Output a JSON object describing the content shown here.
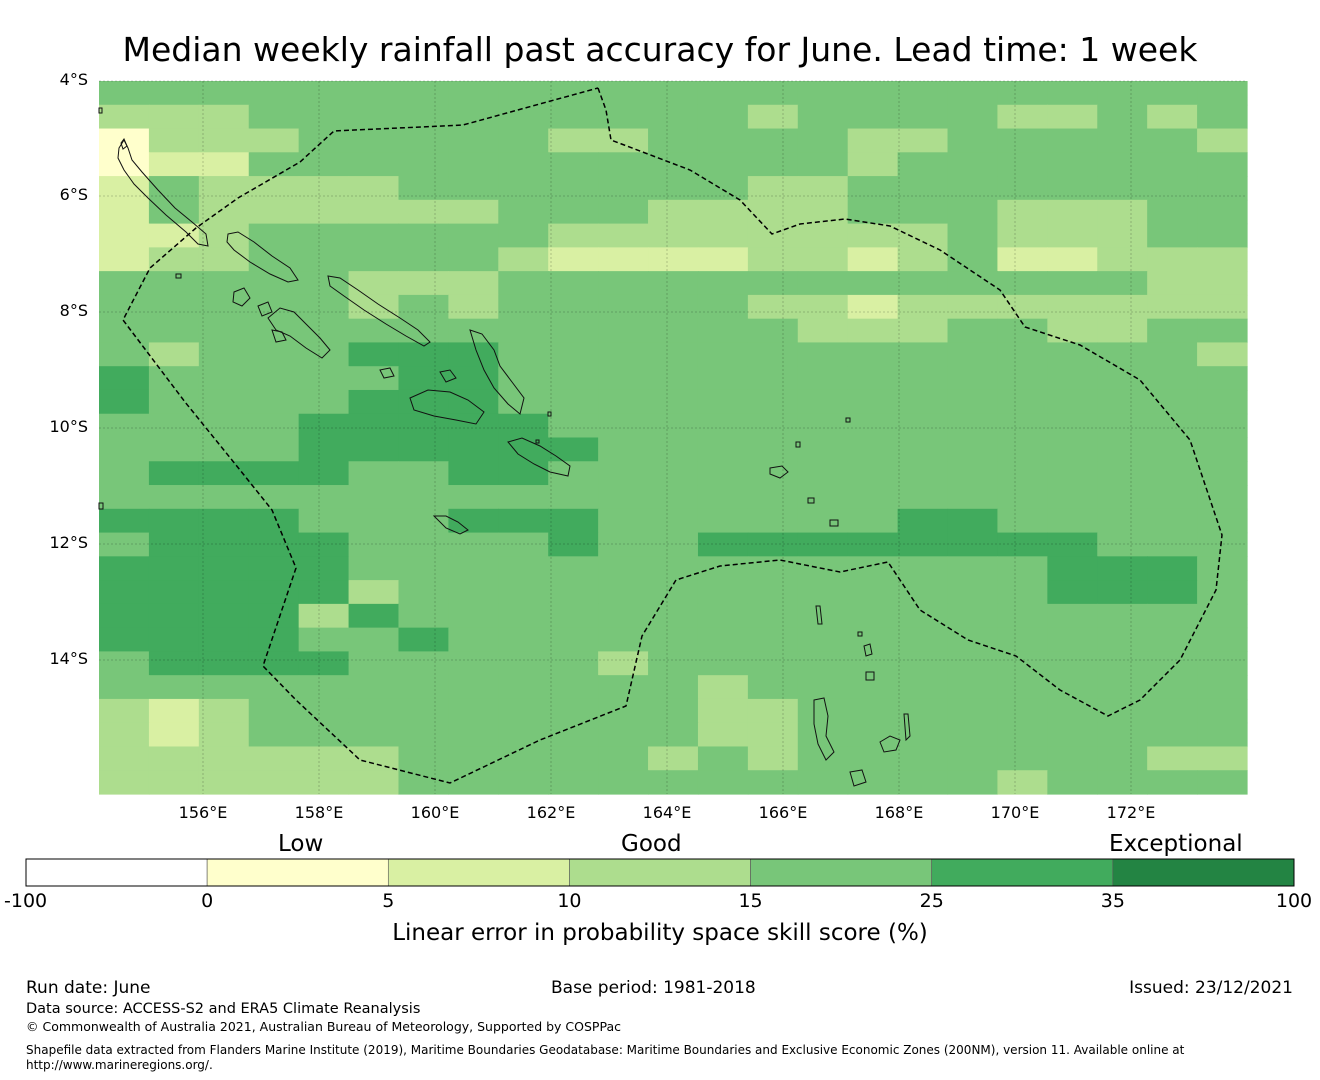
{
  "title": "Median weekly rainfall past accuracy for June. Lead time: 1 week",
  "map": {
    "lat_labels": [
      "4°S",
      "6°S",
      "8°S",
      "10°S",
      "12°S",
      "14°S"
    ],
    "lon_labels": [
      "156°E",
      "158°E",
      "160°E",
      "162°E",
      "164°E",
      "166°E",
      "168°E",
      "170°E",
      "172°E"
    ],
    "grid_color_note": "dark gridlines",
    "class_colors": [
      "#ffffff",
      "#ffffcc",
      "#d9f0a3",
      "#addd8e",
      "#78c679",
      "#41ab5d",
      "#238443"
    ],
    "grid_rows": [
      "44444444444444444444444",
      "33344444444443444433434",
      "13334444433444433444443",
      "12244444444444434444444",
      "24333344444443344444444",
      "24333333444333344433344",
      "22344444433333333433344",
      "23344444322223323422333",
      "44444333444444444444433",
      "44444343444443323333333",
      "44444444444444333443344",
      "43444555444444444444443",
      "54444455444444444444444",
      "54444555444444444444444",
      "44445555544444444444444",
      "44445555554444444444444",
      "45555445544444444444444",
      "44444444444444444444444",
      "55554445554444445544444",
      "45555444454455555555444",
      "55555444444444444445554",
      "55555344444444444445554",
      "55553544444444444444444",
      "55554454444444444444444",
      "45555444443444444444444",
      "44444444444434444444444",
      "32344444444433444444444",
      "32344444444433444444444",
      "33333344444343444444433",
      "33333344444444444434444"
    ]
  },
  "colorbar": {
    "category_labels": [
      "Low",
      "Good",
      "Exceptional"
    ],
    "tick_labels": [
      "-100",
      "0",
      "5",
      "10",
      "15",
      "25",
      "35",
      "100"
    ],
    "colors": [
      "#ffffff",
      "#ffffcc",
      "#d9f0a3",
      "#addd8e",
      "#78c679",
      "#41ab5d",
      "#238443"
    ],
    "title": "Linear error in probability space skill score (%)"
  },
  "footer": {
    "run_date": "Run date: June",
    "base_period": "Base period: 1981-2018",
    "issued": "Issued: 23/12/2021",
    "data_source": "Data source: ACCESS-S2 and ERA5 Climate Reanalysis",
    "copyright": "© Commonwealth of Australia 2021, Australian Bureau of Meteorology, Supported by COSPPac",
    "shapefile_line1": "Shapefile data extracted from Flanders Marine Institute (2019), Maritime Boundaries Geodatabase: Maritime Boundaries and Exclusive Economic Zones (200NM), version 11. Available online at",
    "shapefile_line2": "http://www.marineregions.org/."
  }
}
